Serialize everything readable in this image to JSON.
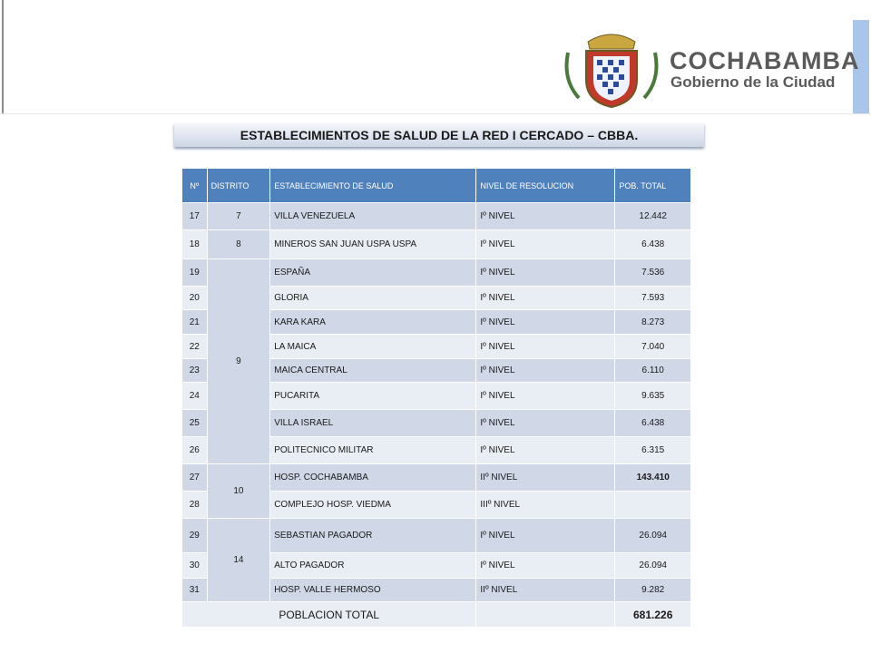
{
  "header": {
    "brand": "COCHABAMBA",
    "subtitle": "Gobierno de la Ciudad"
  },
  "title": "ESTABLECIMIENTOS DE SALUD DE LA RED I CERCADO – CBBA.",
  "table": {
    "columns": [
      "Nº",
      "DISTRITO",
      "ESTABLECIMIENTO  DE SALUD",
      "NIVEL DE RESOLUCION",
      "POB. TOTAL"
    ],
    "rows": [
      {
        "no": "17",
        "distrito": "7",
        "establecimiento": "VILLA VENEZUELA",
        "nivel": "Iº NIVEL",
        "pob": "12.442"
      },
      {
        "no": "18",
        "distrito": "8",
        "establecimiento": "MINEROS SAN JUAN USPA USPA",
        "nivel": "Iº NIVEL",
        "pob": "6.438"
      },
      {
        "no": "19",
        "distrito": "9",
        "establecimiento": "ESPAÑA",
        "nivel": "Iº NIVEL",
        "pob": "7.536"
      },
      {
        "no": "20",
        "establecimiento": "GLORIA",
        "nivel": "Iº NIVEL",
        "pob": "7.593"
      },
      {
        "no": "21",
        "establecimiento": "KARA KARA",
        "nivel": "Iº NIVEL",
        "pob": "8.273"
      },
      {
        "no": "22",
        "establecimiento": "LA MAICA",
        "nivel": "Iº NIVEL",
        "pob": "7.040"
      },
      {
        "no": "23",
        "establecimiento": "MAICA CENTRAL",
        "nivel": "Iº NIVEL",
        "pob": "6.110"
      },
      {
        "no": "24",
        "establecimiento": "PUCARITA",
        "nivel": "Iº NIVEL",
        "pob": "9.635"
      },
      {
        "no": "25",
        "establecimiento": "VILLA ISRAEL",
        "nivel": "Iº NIVEL",
        "pob": "6.438"
      },
      {
        "no": "26",
        "establecimiento": "POLITECNICO  MILITAR",
        "nivel": "Iº NIVEL",
        "pob": "6.315"
      },
      {
        "no": "27",
        "distrito": "10",
        "establecimiento": "HOSP. COCHABAMBA",
        "nivel": "IIº NIVEL",
        "pob": "143.410"
      },
      {
        "no": "28",
        "establecimiento": "COMPLEJO HOSP. VIEDMA",
        "nivel": "IIIº NIVEL"
      },
      {
        "no": "29",
        "distrito": "14",
        "establecimiento": "SEBASTIAN PAGADOR",
        "nivel": "Iº NIVEL",
        "pob": "26.094"
      },
      {
        "no": "30",
        "establecimiento": "ALTO PAGADOR",
        "nivel": "Iº NIVEL",
        "pob": "26.094"
      },
      {
        "no": "31",
        "establecimiento": "HOSP. VALLE HERMOSO",
        "nivel": "IIº NIVEL",
        "pob": "9.282"
      }
    ],
    "total_label": "POBLACION TOTAL",
    "total_value": "681.226"
  }
}
